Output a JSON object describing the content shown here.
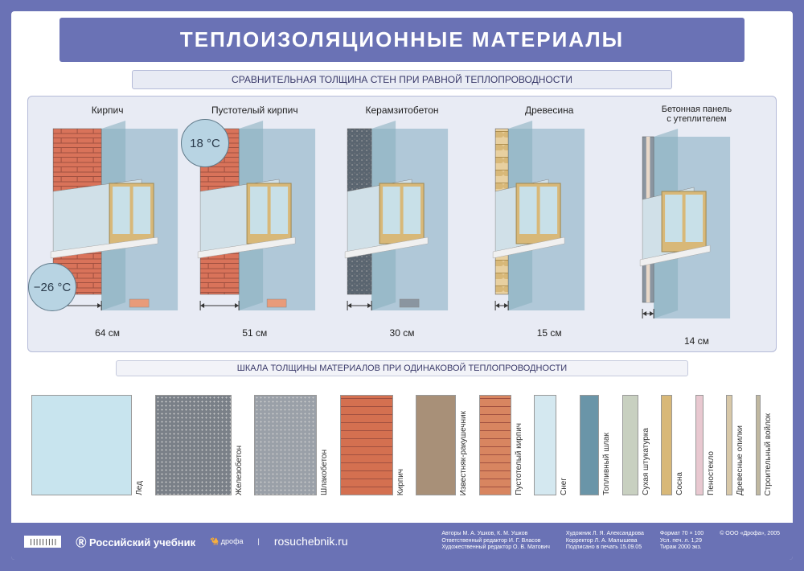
{
  "title": "ТЕПЛОИЗОЛЯЦИОННЫЕ МАТЕРИАЛЫ",
  "subtitle1": "СРАВНИТЕЛЬНАЯ ТОЛЩИНА СТЕН ПРИ РАВНОЙ ТЕПЛОПРОВОДНОСТИ",
  "subtitle2": "ШКАЛА ТОЛЩИНЫ МАТЕРИАЛОВ ПРИ ОДИНАКОВОЙ ТЕПЛОПРОВОДНОСТИ",
  "temp_inside": "18 °C",
  "temp_outside": "−26 °C",
  "walls": [
    {
      "label": "Кирпич",
      "thickness": "64 см",
      "wallWidth": 60,
      "pattern": "brick",
      "color1": "#d9735a",
      "color2": "#e89b7a"
    },
    {
      "label": "Пустотелый кирпич",
      "thickness": "51 см",
      "wallWidth": 48,
      "pattern": "brick",
      "color1": "#d9735a",
      "color2": "#e89b7a"
    },
    {
      "label": "Керамзитобетон",
      "thickness": "30 см",
      "wallWidth": 30,
      "pattern": "concrete",
      "color1": "#5a6570",
      "color2": "#7a8590"
    },
    {
      "label": "Древесина",
      "thickness": "15 см",
      "wallWidth": 16,
      "pattern": "wood",
      "color1": "#d8b878",
      "color2": "#e8d0a0"
    },
    {
      "label": "Бетонная панель\nс утеплителем",
      "thickness": "14 см",
      "wallWidth": 14,
      "pattern": "panel",
      "color1": "#8a95a0",
      "color2": "#c5d0d8"
    }
  ],
  "scale": [
    {
      "label": "Лед",
      "width": 125,
      "height": 125,
      "fill": "#c8e4ee"
    },
    {
      "label": "Железобетон",
      "width": 95,
      "height": 125,
      "fill": "#7a8088",
      "texture": "dots"
    },
    {
      "label": "Шлакобетон",
      "width": 78,
      "height": 125,
      "fill": "#9aa0a8",
      "texture": "dots"
    },
    {
      "label": "Кирпич",
      "width": 66,
      "height": 125,
      "fill": "#d47050",
      "texture": "brick"
    },
    {
      "label": "Известняк-ракушечник",
      "width": 50,
      "height": 125,
      "fill": "#a89078"
    },
    {
      "label": "Пустотелый кирпич",
      "width": 40,
      "height": 125,
      "fill": "#d88560",
      "texture": "brick"
    },
    {
      "label": "Снег",
      "width": 28,
      "height": 125,
      "fill": "#d4e8f0"
    },
    {
      "label": "Топливный шлак",
      "width": 24,
      "height": 125,
      "fill": "#6a95a8"
    },
    {
      "label": "Сухая штукатурка",
      "width": 20,
      "height": 125,
      "fill": "#c8d0c0"
    },
    {
      "label": "Сосна",
      "width": 14,
      "height": 125,
      "fill": "#d8b878"
    },
    {
      "label": "Пеностекло",
      "width": 10,
      "height": 125,
      "fill": "#e8c8d0"
    },
    {
      "label": "Древесные опилки",
      "width": 8,
      "height": 125,
      "fill": "#d8c8a8"
    },
    {
      "label": "Строительный войлок",
      "width": 6,
      "height": 125,
      "fill": "#c0b8a0"
    }
  ],
  "footer": {
    "publisher": "Российский учебник",
    "site": "rosuchebnik.ru",
    "credits1": "Авторы М. А. Ушков, К. М. Ушков\nОтветственный редактор И. Г. Власов\nХудожественный редактор О. В. Матович",
    "credits2": "Художник Л. Я. Александрова\nКорректор Л. А. Малышева\nПодписано в печать 15.09.05",
    "credits3": "Формат 70 × 100\nУсл. печ. л. 1,29\nТираж 2000 экз.",
    "credits4": "© ООО «Дрофа», 2005"
  },
  "colors": {
    "frame": "#6a72b5",
    "panel": "#e8ebf4",
    "interior": "#b0c8d8",
    "window_frame": "#d8b878"
  }
}
